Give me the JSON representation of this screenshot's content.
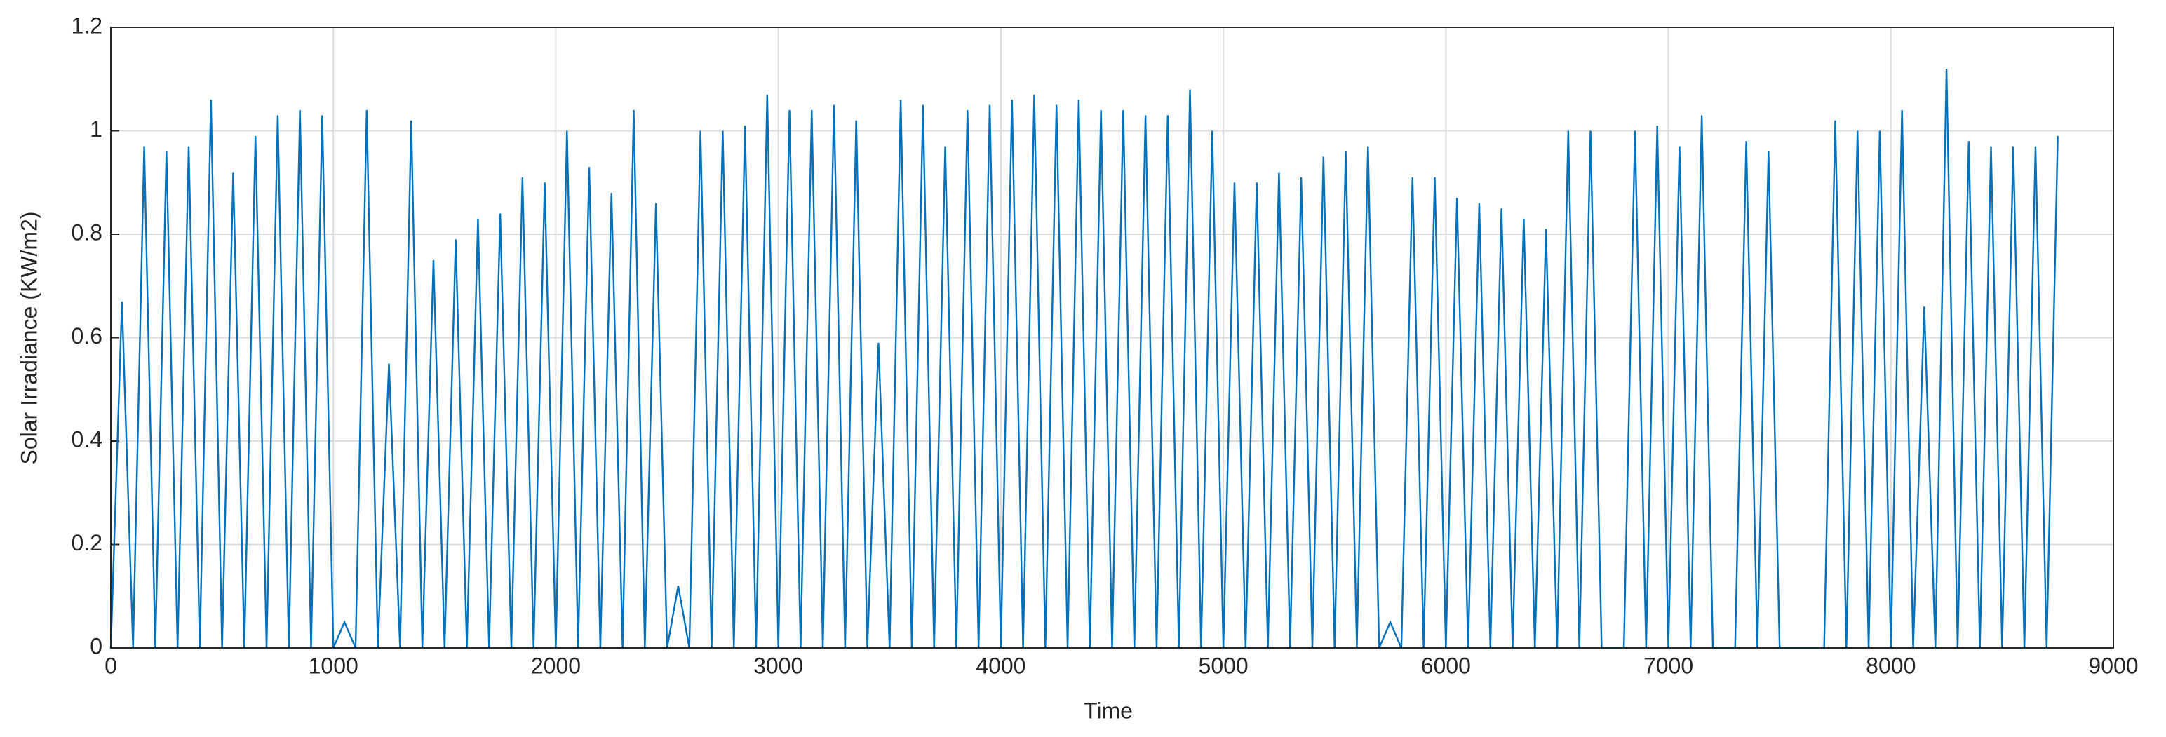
{
  "chart_data": {
    "type": "line",
    "xlabel": "Time",
    "ylabel": "Solar Irradiance  (KW/m2)",
    "xlim": [
      0,
      9000
    ],
    "xticks": [
      0,
      1000,
      2000,
      3000,
      4000,
      5000,
      6000,
      7000,
      8000,
      9000
    ],
    "ylim": [
      0,
      1.2
    ],
    "yticks": [
      0,
      0.2,
      0.4,
      0.6,
      0.8,
      1,
      1.2
    ],
    "grid": true,
    "series": [
      {
        "color": "#0072bd",
        "x": [
          0,
          50,
          100,
          150,
          200,
          250,
          300,
          350,
          400,
          450,
          500,
          550,
          600,
          650,
          700,
          750,
          800,
          850,
          900,
          950,
          1000,
          1050,
          1100,
          1150,
          1200,
          1250,
          1300,
          1350,
          1400,
          1450,
          1500,
          1550,
          1600,
          1650,
          1700,
          1750,
          1800,
          1850,
          1900,
          1950,
          2000,
          2050,
          2100,
          2150,
          2200,
          2250,
          2300,
          2350,
          2400,
          2450,
          2500,
          2550,
          2600,
          2650,
          2700,
          2750,
          2800,
          2850,
          2900,
          2950,
          3000,
          3050,
          3100,
          3150,
          3200,
          3250,
          3300,
          3350,
          3400,
          3450,
          3500,
          3550,
          3600,
          3650,
          3700,
          3750,
          3800,
          3850,
          3900,
          3950,
          4000,
          4050,
          4100,
          4150,
          4200,
          4250,
          4300,
          4350,
          4400,
          4450,
          4500,
          4550,
          4600,
          4650,
          4700,
          4750,
          4800,
          4850,
          4900,
          4950,
          5000,
          5050,
          5100,
          5150,
          5200,
          5250,
          5300,
          5350,
          5400,
          5450,
          5500,
          5550,
          5600,
          5650,
          5700,
          5750,
          5800,
          5850,
          5900,
          5950,
          6000,
          6050,
          6100,
          6150,
          6200,
          6250,
          6300,
          6350,
          6400,
          6450,
          6500,
          6550,
          6600,
          6650,
          6700,
          6750,
          6800,
          6850,
          6900,
          6950,
          7000,
          7050,
          7100,
          7150,
          7200,
          7250,
          7300,
          7350,
          7400,
          7450,
          7500,
          7550,
          7600,
          7650,
          7700,
          7750,
          7800,
          7850,
          7900,
          7950,
          8000,
          8050,
          8100,
          8150,
          8200,
          8250,
          8300,
          8350,
          8400,
          8450,
          8500,
          8550,
          8600,
          8650,
          8700,
          8750
        ],
        "values": [
          0,
          0.67,
          0,
          0.97,
          0,
          0.96,
          0,
          0.97,
          0,
          1.06,
          0,
          0.92,
          0,
          0.99,
          0,
          1.03,
          0,
          1.04,
          0,
          1.03,
          0,
          0.05,
          0,
          1.04,
          0,
          0.55,
          0,
          1.02,
          0,
          0.75,
          0,
          0.79,
          0,
          0.83,
          0,
          0.84,
          0,
          0.91,
          0,
          0.9,
          0,
          1.0,
          0,
          0.93,
          0,
          0.88,
          0,
          1.04,
          0,
          0.86,
          0,
          0.12,
          0,
          1.0,
          0,
          1.0,
          0,
          1.01,
          0,
          1.07,
          0,
          1.04,
          0,
          1.04,
          0,
          1.05,
          0,
          1.02,
          0,
          0.59,
          0,
          1.06,
          0,
          1.05,
          0,
          0.97,
          0,
          1.04,
          0,
          1.05,
          0,
          1.06,
          0,
          1.07,
          0,
          1.05,
          0,
          1.06,
          0,
          1.04,
          0,
          1.04,
          0,
          1.03,
          0,
          1.03,
          0,
          1.08,
          0,
          1.0,
          0,
          0.9,
          0,
          0.9,
          0,
          0.92,
          0,
          0.91,
          0,
          0.95,
          0,
          0.96,
          0,
          0.97,
          0,
          0.05,
          0,
          0.91,
          0,
          0.91,
          0,
          0.87,
          0,
          0.86,
          0,
          0.85,
          0,
          0.83,
          0,
          0.81,
          0,
          1.0,
          0,
          1.0,
          0,
          0.0,
          0,
          1.0,
          0,
          1.01,
          0,
          0.97,
          0,
          1.03,
          0,
          0.0,
          0,
          0.98,
          0,
          0.96,
          0,
          0.0,
          0,
          0.0,
          0,
          1.02,
          0,
          1.0,
          0,
          1.0,
          0,
          1.04,
          0,
          0.66,
          0,
          1.12,
          0,
          0.98,
          0,
          0.97,
          0,
          0.97,
          0,
          0.97,
          0,
          0.99
        ]
      }
    ]
  }
}
